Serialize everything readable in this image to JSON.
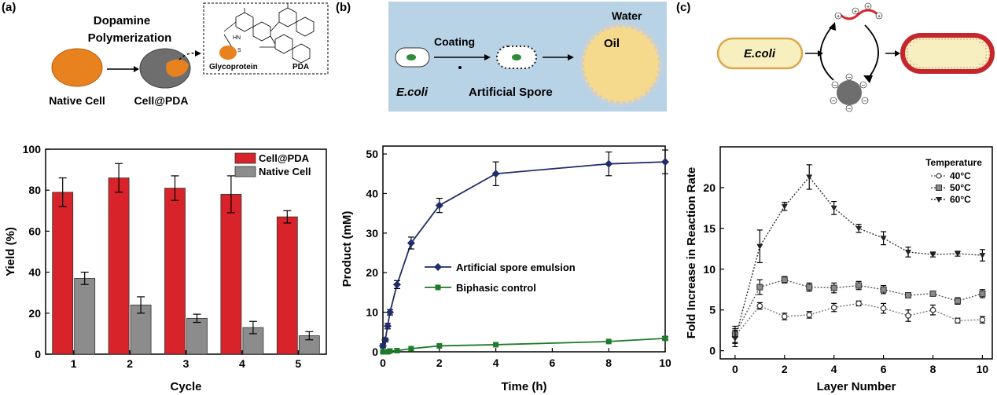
{
  "panels": {
    "a": {
      "label": "(a)",
      "schematic": {
        "title_line1": "Dopamine",
        "title_line2": "Polymerization",
        "native_cell": "Native Cell",
        "cell_pda": "Cell@PDA",
        "glycoprotein": "Glycoprotein",
        "pda": "PDA",
        "hn": "HN",
        "s": "S"
      }
    },
    "b": {
      "label": "(b)",
      "schematic": {
        "water": "Water",
        "oil": "Oil",
        "coating": "Coating",
        "ecoli": "E.coli",
        "artificial_spore": "Artificial Spore"
      }
    },
    "c": {
      "label": "(c)",
      "schematic": {
        "ecoli": "E.coli",
        "plus": "+",
        "minus": "−"
      }
    }
  },
  "colors": {
    "cell_pda": "#d8232a",
    "native_cell": "#8c8c8c",
    "spore_series": "#1f2d6b",
    "control_series": "#1f7a2a",
    "panel_b_bg": "#b9d3e6",
    "orange": "#e8821e",
    "oil": "#f5d98c",
    "ecoli_fill": "#f7efc0"
  },
  "chart_data": [
    {
      "type": "bar",
      "categories": [
        "1",
        "2",
        "3",
        "4",
        "5"
      ],
      "series": [
        {
          "name": "Cell@PDA",
          "values": [
            79,
            86,
            81,
            78,
            67
          ],
          "errors": [
            7,
            7,
            6,
            9,
            3
          ]
        },
        {
          "name": "Native Cell",
          "values": [
            37,
            24,
            17.5,
            13,
            9
          ],
          "errors": [
            3,
            4,
            2,
            3,
            2
          ]
        }
      ],
      "title": "",
      "xlabel": "Cycle",
      "ylabel": "Yield (%)",
      "ylim": [
        0,
        100
      ],
      "yticks": [
        "0",
        "20",
        "40",
        "60",
        "80",
        "100"
      ],
      "legend": "top-right"
    },
    {
      "type": "line",
      "series": [
        {
          "name": "Artificial spore emulsion",
          "x": [
            0,
            0.083,
            0.167,
            0.25,
            0.5,
            1,
            2,
            4,
            8,
            10
          ],
          "values": [
            1.5,
            3,
            6.5,
            10,
            17,
            27.5,
            37,
            45,
            47.5,
            48
          ],
          "errors": [
            0.5,
            0.5,
            0.7,
            0.7,
            1,
            1.5,
            1.8,
            3,
            3,
            3
          ]
        },
        {
          "name": "Biphasic control",
          "x": [
            0,
            0.083,
            0.167,
            0.25,
            0.5,
            1,
            2,
            4,
            8,
            10
          ],
          "values": [
            0,
            0,
            0,
            0.2,
            0.3,
            0.8,
            1.5,
            1.8,
            2.6,
            3.4
          ],
          "errors": [
            0,
            0,
            0,
            0,
            0.1,
            0.2,
            0.3,
            0.3,
            0.3,
            0.4
          ]
        }
      ],
      "title": "",
      "xlabel": "Time (h)",
      "ylabel": "Product (mM)",
      "xlim": [
        0,
        10
      ],
      "ylim": [
        0,
        52
      ],
      "xticks": [
        "0",
        "2",
        "4",
        "6",
        "8",
        "10"
      ],
      "yticks": [
        "0",
        "10",
        "20",
        "30",
        "40",
        "50"
      ],
      "legend": "center-right"
    },
    {
      "type": "line",
      "series": [
        {
          "name": "40°C",
          "x": [
            0,
            1,
            2,
            3,
            4,
            5,
            6,
            7,
            8,
            9,
            10
          ],
          "values": [
            1.8,
            5.5,
            4.2,
            4.4,
            5.3,
            5.8,
            5.2,
            4.3,
            5,
            3.7,
            3.8
          ],
          "errors": [
            0.9,
            0.4,
            0.4,
            0.4,
            0.5,
            0.3,
            0.6,
            0.7,
            0.6,
            0.3,
            0.4
          ]
        },
        {
          "name": "50°C",
          "x": [
            0,
            1,
            2,
            3,
            4,
            5,
            6,
            7,
            8,
            9,
            10
          ],
          "values": [
            2,
            7.8,
            8.7,
            7.8,
            7.7,
            8,
            7.5,
            6.8,
            7,
            6.1,
            7
          ],
          "errors": [
            1,
            0.9,
            0.4,
            0.5,
            0.6,
            0.5,
            0.5,
            0.3,
            0.3,
            0.4,
            0.5
          ]
        },
        {
          "name": "60°C",
          "x": [
            0,
            1,
            2,
            3,
            4,
            5,
            6,
            7,
            8,
            9,
            10
          ],
          "values": [
            1.5,
            12.8,
            17.7,
            21.3,
            17.5,
            15,
            13.8,
            12.1,
            11.8,
            11.9,
            11.7
          ],
          "errors": [
            1,
            2,
            0.5,
            1.5,
            0.8,
            0.5,
            0.8,
            0.6,
            0.3,
            0.3,
            0.7
          ]
        }
      ],
      "title": "",
      "legend_title": "Temperature",
      "xlabel": "Layer Number",
      "ylabel": "Fold Increase in Reaction Rate",
      "xlim": [
        -0.6,
        10.4
      ],
      "ylim": [
        -1,
        25
      ],
      "xticks": [
        "0",
        "2",
        "4",
        "6",
        "8",
        "10"
      ],
      "yticks": [
        "0",
        "5",
        "10",
        "15",
        "20"
      ],
      "legend": "top-right"
    }
  ]
}
